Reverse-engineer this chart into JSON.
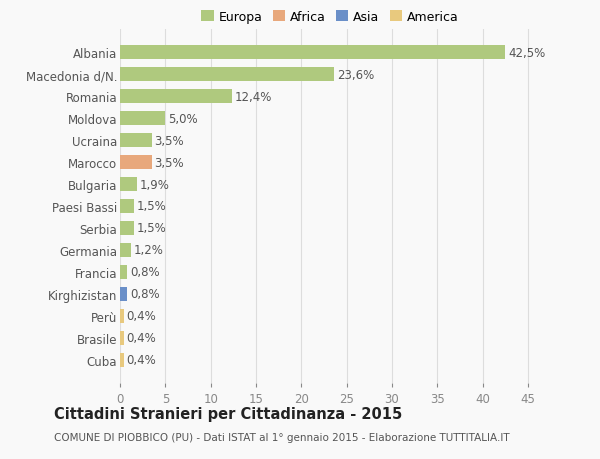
{
  "categories": [
    "Albania",
    "Macedonia d/N.",
    "Romania",
    "Moldova",
    "Ucraina",
    "Marocco",
    "Bulgaria",
    "Paesi Bassi",
    "Serbia",
    "Germania",
    "Francia",
    "Kirghizistan",
    "Perù",
    "Brasile",
    "Cuba"
  ],
  "values": [
    42.5,
    23.6,
    12.4,
    5.0,
    3.5,
    3.5,
    1.9,
    1.5,
    1.5,
    1.2,
    0.8,
    0.8,
    0.4,
    0.4,
    0.4
  ],
  "labels": [
    "42,5%",
    "23,6%",
    "12,4%",
    "5,0%",
    "3,5%",
    "3,5%",
    "1,9%",
    "1,5%",
    "1,5%",
    "1,2%",
    "0,8%",
    "0,8%",
    "0,4%",
    "0,4%",
    "0,4%"
  ],
  "colors": [
    "#afc97e",
    "#afc97e",
    "#afc97e",
    "#afc97e",
    "#afc97e",
    "#e8a87c",
    "#afc97e",
    "#afc97e",
    "#afc97e",
    "#afc97e",
    "#afc97e",
    "#6a8fc8",
    "#e8c97e",
    "#e8c97e",
    "#e8c97e"
  ],
  "legend_labels": [
    "Europa",
    "Africa",
    "Asia",
    "America"
  ],
  "legend_colors": [
    "#afc97e",
    "#e8a87c",
    "#6a8fc8",
    "#e8c97e"
  ],
  "title": "Cittadini Stranieri per Cittadinanza - 2015",
  "subtitle": "COMUNE DI PIOBBICO (PU) - Dati ISTAT al 1° gennaio 2015 - Elaborazione TUTTITALIA.IT",
  "xlim": [
    0,
    47
  ],
  "background_color": "#f9f9f9",
  "grid_color": "#dddddd",
  "bar_height": 0.65,
  "label_fontsize": 8.5,
  "tick_fontsize": 8.5,
  "title_fontsize": 10.5,
  "subtitle_fontsize": 7.5
}
